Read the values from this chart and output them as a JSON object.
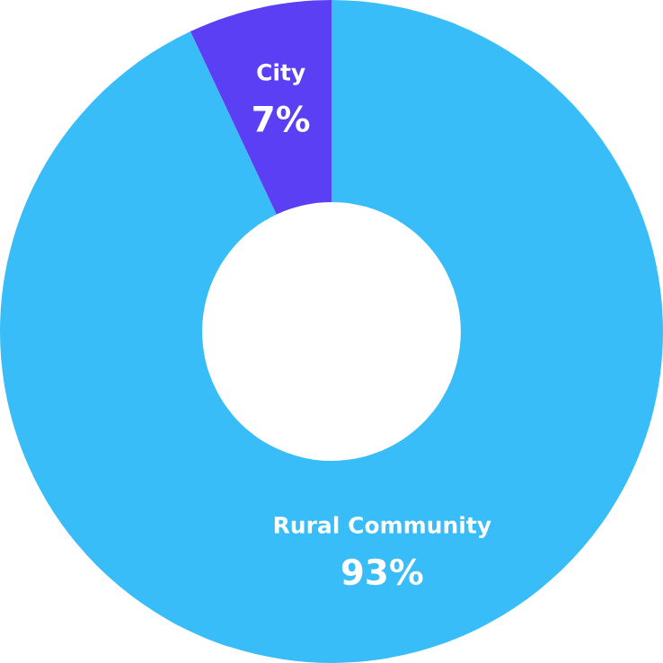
{
  "chart_data": {
    "type": "donut",
    "categories": [
      "Rural Community",
      "City"
    ],
    "values": [
      93,
      7
    ],
    "colors": [
      "#38bdf8",
      "#5a3ff5"
    ],
    "value_labels": [
      "93%",
      "7%"
    ],
    "legend": false
  }
}
